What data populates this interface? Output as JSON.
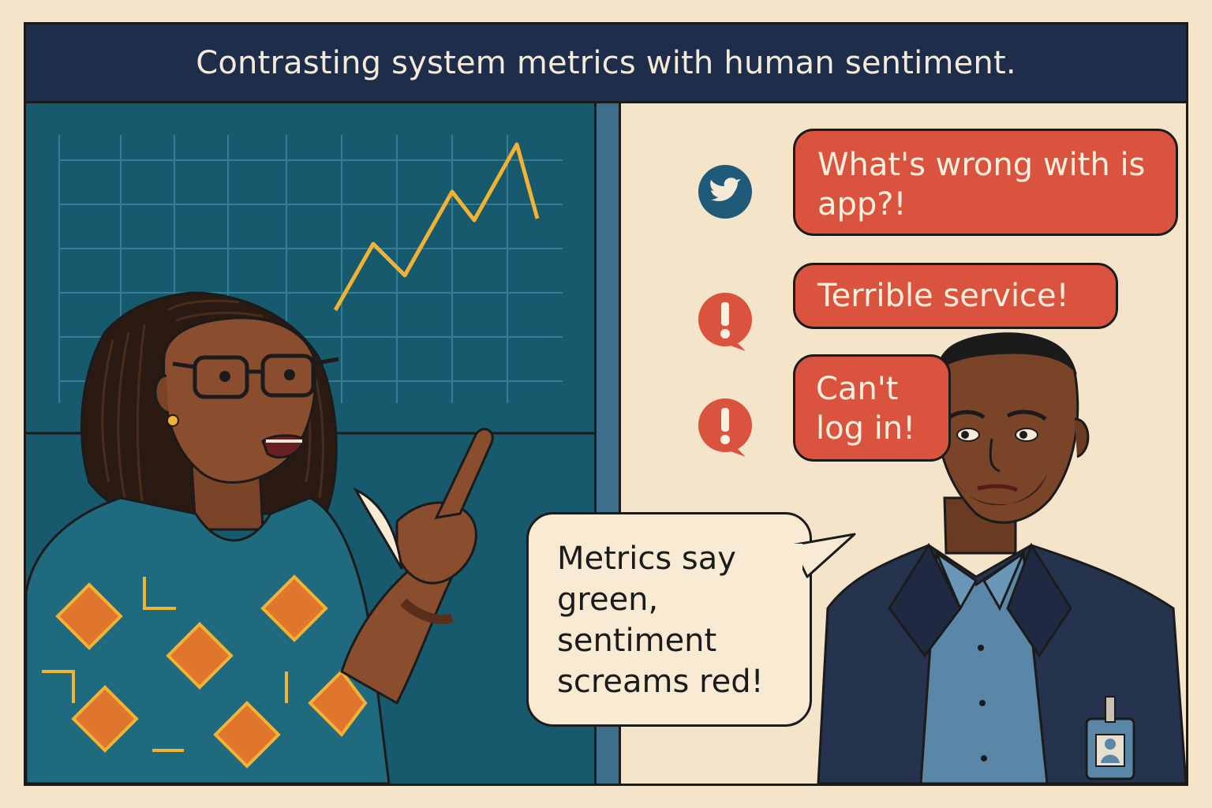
{
  "banner": {
    "title": "Contrasting system metrics with human sentiment."
  },
  "feed": {
    "items": [
      {
        "icon": "twitter-bird-icon",
        "text": "What's wrong with is app?!"
      },
      {
        "icon": "exclamation-icon",
        "text": "Terrible service!"
      },
      {
        "icon": "exclamation-icon",
        "text": "Can't log in!"
      }
    ]
  },
  "speech": {
    "text": "Metrics say green, sentiment screams red!"
  },
  "colors": {
    "banner": "#1d2d4a",
    "dashboard": "#175a6d",
    "chart_line": "#f2b233",
    "alert_red": "#d9533e",
    "twitter_circle": "#1f5a78",
    "background": "#f4e4c9"
  }
}
